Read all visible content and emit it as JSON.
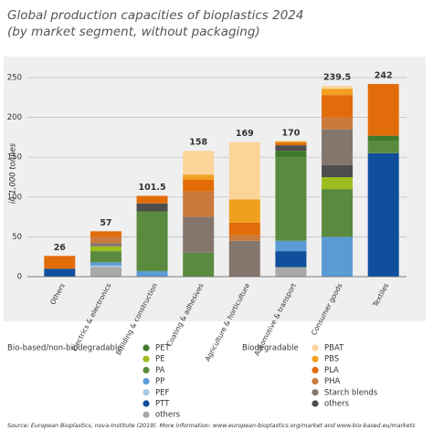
{
  "chart_data": {
    "type": "stacked_bar",
    "title": "Global production capacities of bioplastics 2024",
    "subtitle": "(by market segment, without packaging)",
    "y_label": "in 1,000 tonnes",
    "categories": [
      "Others",
      "Electrics & electronics",
      "Building & construction",
      "Coating & adhesives",
      "Agriculture & horticulture",
      "Automotive & transport",
      "Consumer goods",
      "Textiles"
    ],
    "totals": [
      26,
      57,
      101.5,
      158,
      169,
      170,
      239.5,
      242
    ],
    "ylim": [
      0,
      250
    ],
    "yticks": [
      0,
      50,
      100,
      150,
      200,
      250
    ],
    "grid": true,
    "series_groups": [
      {
        "name": "Bio-based/non-biodegradable",
        "series": [
          {
            "name": "PET",
            "color": "#3f7a2a",
            "values": [
              0,
              0,
              0,
              0,
              0,
              8,
              0,
              7
            ]
          },
          {
            "name": "PE",
            "color": "#9cbd1e",
            "values": [
              0,
              6,
              0,
              0,
              0,
              0,
              15,
              0
            ]
          },
          {
            "name": "PA",
            "color": "#5a8a3e",
            "values": [
              0,
              14,
              75,
              30,
              0,
              105,
              60,
              15
            ]
          },
          {
            "name": "PP",
            "color": "#5b9bd5",
            "values": [
              0,
              4,
              7,
              0,
              0,
              13,
              50,
              0
            ]
          },
          {
            "name": "PEF",
            "color": "#a9c8e8",
            "values": [
              0,
              2,
              0,
              0,
              0,
              0,
              0,
              0
            ]
          },
          {
            "name": "PTT",
            "color": "#0f4f9c",
            "values": [
              10,
              0,
              0,
              0,
              0,
              20,
              0,
              155
            ]
          },
          {
            "name": "others",
            "color": "#a9a9a9",
            "values": [
              0,
              12,
              0,
              0,
              0,
              12,
              0,
              0
            ]
          }
        ]
      },
      {
        "name": "Biodegradable",
        "series": [
          {
            "name": "PBAT",
            "color": "#fbd49a",
            "values": [
              0,
              0,
              0,
              30,
              72,
              0,
              3.5,
              0
            ]
          },
          {
            "name": "PBS",
            "color": "#f0a01e",
            "values": [
              0,
              0,
              0,
              6,
              29,
              2,
              8,
              0
            ]
          },
          {
            "name": "PLA",
            "color": "#e36c0a",
            "values": [
              16,
              7,
              9.5,
              15,
              16,
              3,
              28,
              65
            ]
          },
          {
            "name": "PHA",
            "color": "#c97a3c",
            "values": [
              0,
              8,
              0,
              32,
              7,
              0,
              15,
              0
            ]
          },
          {
            "name": "Starch blends",
            "color": "#85766d",
            "values": [
              0,
              4,
              0,
              45,
              45,
              0,
              45,
              0
            ]
          },
          {
            "name": "others",
            "color": "#4d4d4d",
            "values": [
              0,
              0,
              10,
              0,
              0,
              7,
              15,
              0
            ]
          }
        ]
      }
    ],
    "source": "Source: European Bioplastics, nova-Institute (2019). More information: www.european-bioplastics.org/market and www.bio-based.eu/markets"
  }
}
